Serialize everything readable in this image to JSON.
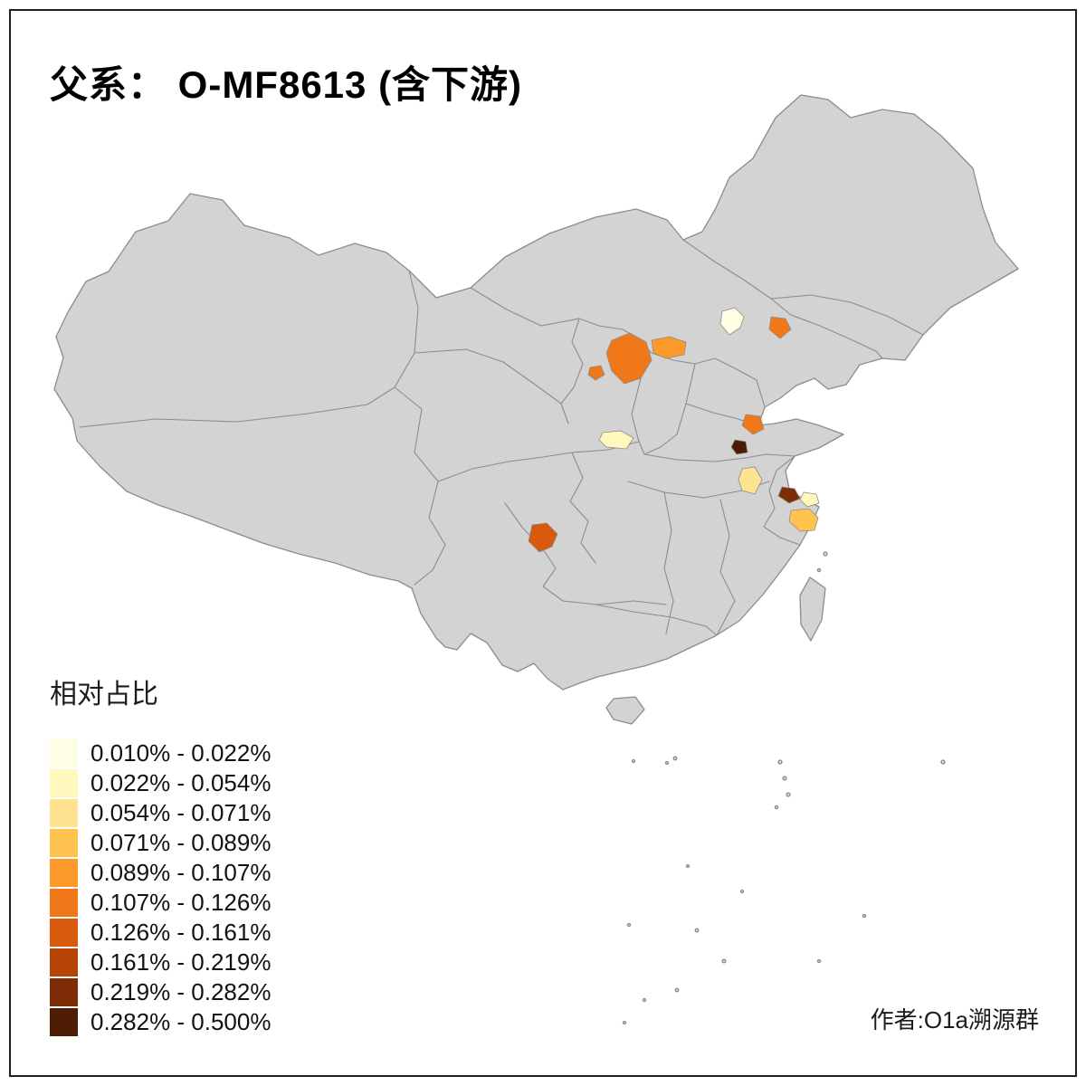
{
  "title": "父系： O-MF8613 (含下游)",
  "credit": "作者:O1a溯源群",
  "legend": {
    "title": "相对占比",
    "items": [
      {
        "label": "0.010% - 0.022%",
        "color": "#FFFEE5"
      },
      {
        "label": "0.022% - 0.054%",
        "color": "#FFF7BC"
      },
      {
        "label": "0.054% - 0.071%",
        "color": "#FEE391"
      },
      {
        "label": "0.071% - 0.089%",
        "color": "#FEC44F"
      },
      {
        "label": "0.089% - 0.107%",
        "color": "#FB9A29"
      },
      {
        "label": "0.107% - 0.126%",
        "color": "#F07818"
      },
      {
        "label": "0.126% - 0.161%",
        "color": "#D85A0D"
      },
      {
        "label": "0.161% - 0.219%",
        "color": "#B64405"
      },
      {
        "label": "0.219% - 0.282%",
        "color": "#7E2D06"
      },
      {
        "label": "0.282% - 0.500%",
        "color": "#4E1B05"
      }
    ]
  },
  "map": {
    "land_color": "#D3D3D3",
    "boundary_color": "#8C8C8C",
    "background": "#FFFFFF",
    "regions": [
      {
        "id": "beijing",
        "bin": "0.010% - 0.022%",
        "color": "#FFFEE5"
      },
      {
        "id": "liaoning-south",
        "bin": "0.107% - 0.126%",
        "color": "#F07818"
      },
      {
        "id": "shaanxi-north-large",
        "bin": "0.107% - 0.126%",
        "color": "#F07818"
      },
      {
        "id": "shaanxi-north-small",
        "bin": "0.107% - 0.126%",
        "color": "#F07818"
      },
      {
        "id": "inner-mongolia-center",
        "bin": "0.089% - 0.107%",
        "color": "#FB9A29"
      },
      {
        "id": "shanxi-south",
        "bin": "0.022% - 0.054%",
        "color": "#FFF7BC"
      },
      {
        "id": "shandong-jiangsu-border",
        "bin": "0.107% - 0.126%",
        "color": "#F07818"
      },
      {
        "id": "henan-east",
        "bin": "0.282% - 0.500%",
        "color": "#4E1B05"
      },
      {
        "id": "anhui-center",
        "bin": "0.054% - 0.071%",
        "color": "#FEE391"
      },
      {
        "id": "jiangsu-south",
        "bin": "0.219% - 0.282%",
        "color": "#7E2D06"
      },
      {
        "id": "shanghai-area",
        "bin": "0.022% - 0.054%",
        "color": "#FFF7BC"
      },
      {
        "id": "zhejiang-north",
        "bin": "0.071% - 0.089%",
        "color": "#FEC44F"
      },
      {
        "id": "sichuan-south",
        "bin": "0.126% - 0.161%",
        "color": "#D85A0D"
      }
    ]
  }
}
